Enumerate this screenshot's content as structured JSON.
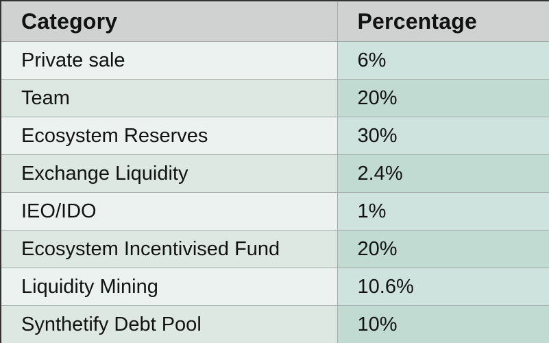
{
  "table": {
    "columns": [
      {
        "key": "category",
        "label": "Category"
      },
      {
        "key": "percentage",
        "label": "Percentage"
      }
    ],
    "rows": [
      {
        "category": "Private sale",
        "percentage": "6%"
      },
      {
        "category": "Team",
        "percentage": "20%"
      },
      {
        "category": "Ecosystem Reserves",
        "percentage": "30%"
      },
      {
        "category": "Exchange Liquidity",
        "percentage": "2.4%"
      },
      {
        "category": "IEO/IDO",
        "percentage": "1%"
      },
      {
        "category": "Ecosystem Incentivised Fund",
        "percentage": "20%"
      },
      {
        "category": "Liquidity Mining",
        "percentage": "10.6%"
      },
      {
        "category": "Synthetify Debt Pool",
        "percentage": "10%"
      }
    ]
  },
  "chart_data": {
    "type": "table",
    "title": "",
    "columns": [
      "Category",
      "Percentage"
    ],
    "categories": [
      "Private sale",
      "Team",
      "Ecosystem Reserves",
      "Exchange Liquidity",
      "IEO/IDO",
      "Ecosystem Incentivised Fund",
      "Liquidity Mining",
      "Synthetify Debt Pool"
    ],
    "values": [
      6,
      20,
      30,
      2.4,
      1,
      20,
      10.6,
      10
    ],
    "unit": "%"
  },
  "colors": {
    "header_bg": "#d0d1d1",
    "category_row_light": "#ebf2ef",
    "category_row_dark": "#dde8e3",
    "percentage_row_light": "#cee3dd",
    "percentage_row_dark": "#c1dbd2",
    "grid_line": "#a3aca8",
    "outer_border": "#333333",
    "text": "#121212"
  }
}
